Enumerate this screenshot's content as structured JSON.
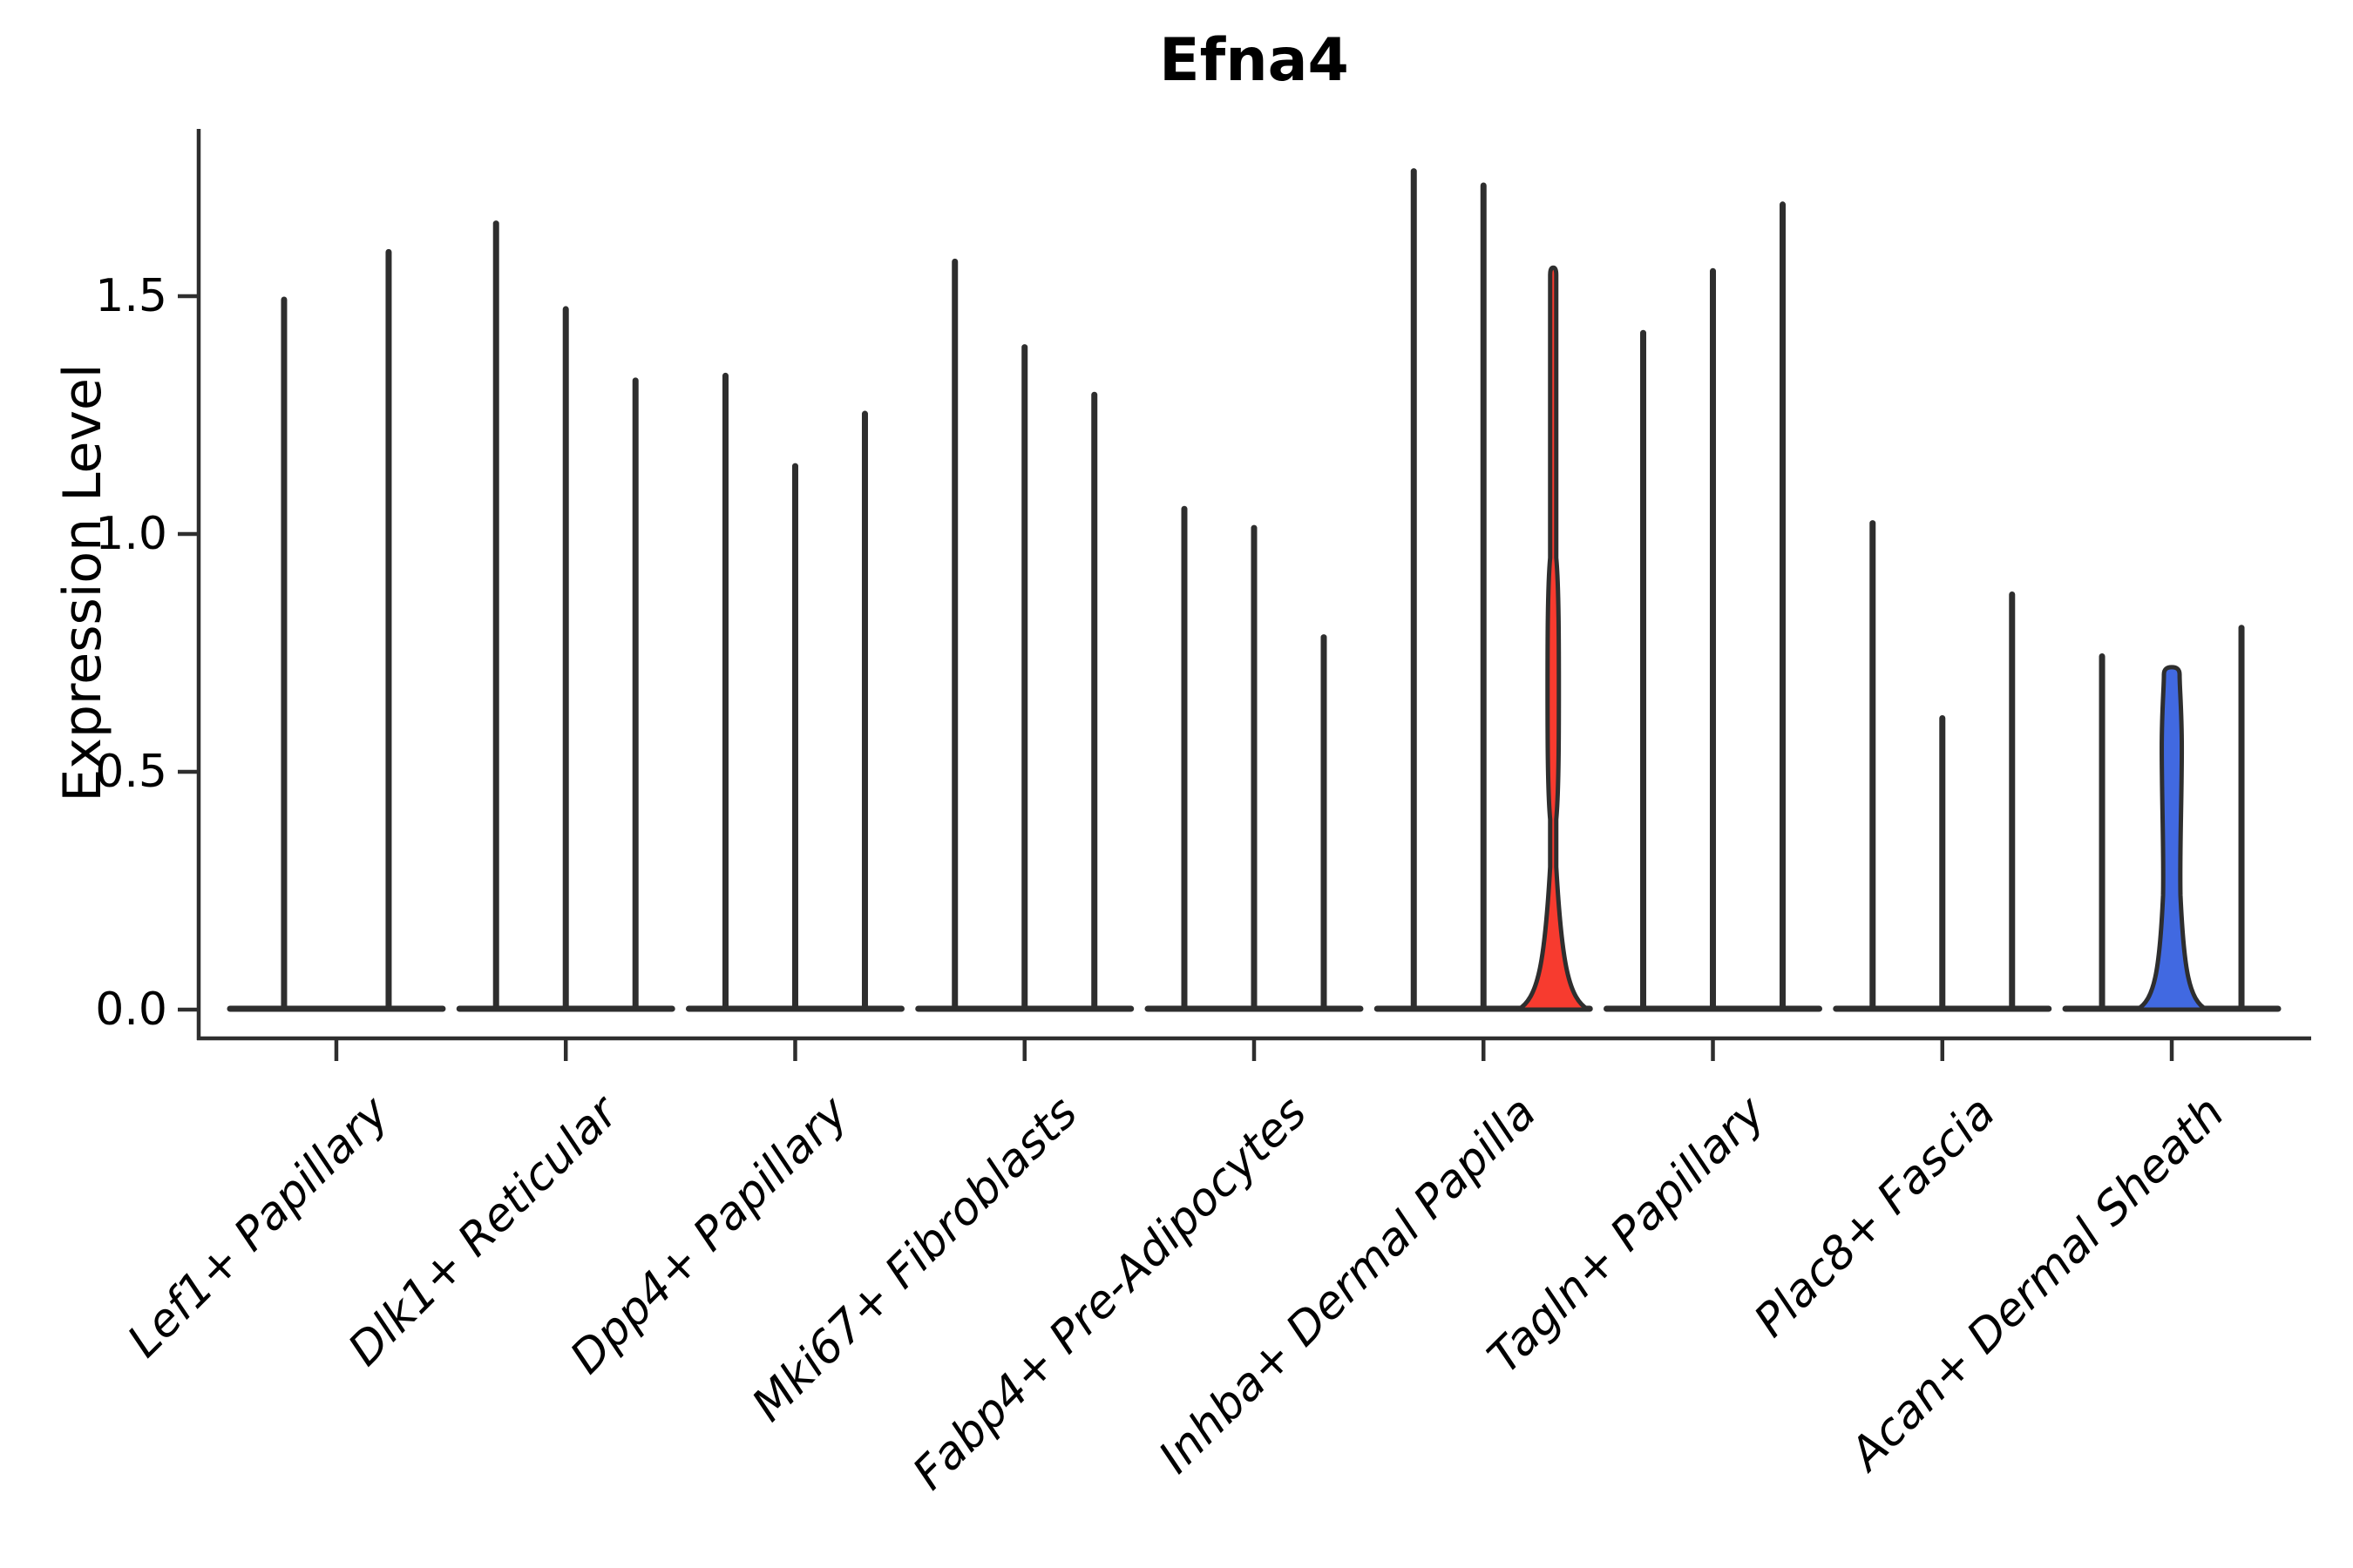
{
  "chart_data": {
    "type": "violin",
    "title": "Efna4",
    "ylabel": "Expression Level",
    "xlabel": "",
    "yticks": [
      "0.0",
      "0.5",
      "1.0",
      "1.5"
    ],
    "ytick_values": [
      0.0,
      0.5,
      1.0,
      1.5
    ],
    "ylim": [
      -0.06,
      1.85
    ],
    "grid": false,
    "legend": "none",
    "categories": [
      "Lef1+ Papillary",
      "Dlk1+ Reticular",
      "Dpp4+ Papillary",
      "Mki67+ Fibroblasts",
      "Fabp4+ Pre-Adipocytes",
      "Inhba+ Dermal Papilla",
      "Tagln+ Papillary",
      "Plac8+ Fascia",
      "Acan+ Dermal Sheath"
    ],
    "groups": [
      {
        "category": "Lef1+ Papillary",
        "violins": [
          {
            "peak": 1.5,
            "shape": "spike"
          },
          {
            "peak": 1.6,
            "shape": "spike"
          }
        ]
      },
      {
        "category": "Dlk1+ Reticular",
        "violins": [
          {
            "peak": 1.66,
            "shape": "spike"
          },
          {
            "peak": 1.48,
            "shape": "spike"
          },
          {
            "peak": 1.33,
            "shape": "spike"
          }
        ]
      },
      {
        "category": "Dpp4+ Papillary",
        "violins": [
          {
            "peak": 1.34,
            "shape": "spike"
          },
          {
            "peak": 1.15,
            "shape": "spike"
          },
          {
            "peak": 1.26,
            "shape": "spike"
          }
        ]
      },
      {
        "category": "Mki67+ Fibroblasts",
        "violins": [
          {
            "peak": 1.58,
            "shape": "spike"
          },
          {
            "peak": 1.4,
            "shape": "spike"
          },
          {
            "peak": 1.3,
            "shape": "spike"
          }
        ]
      },
      {
        "category": "Fabp4+ Pre-Adipocytes",
        "violins": [
          {
            "peak": 1.06,
            "shape": "spike"
          },
          {
            "peak": 1.02,
            "shape": "spike"
          },
          {
            "peak": 0.79,
            "shape": "spike"
          }
        ]
      },
      {
        "category": "Inhba+ Dermal Papilla",
        "violins": [
          {
            "peak": 1.77,
            "shape": "spike"
          },
          {
            "peak": 1.74,
            "shape": "spike"
          },
          {
            "peak": 1.56,
            "shape": "violin_bulge",
            "fill_color": "#f73b2f",
            "bulge_top": 0.95,
            "bulge_bottom": 0.4,
            "bulge_halfwidth": 6.5,
            "bell_start": 0.3
          }
        ]
      },
      {
        "category": "Tagln+ Papillary",
        "violins": [
          {
            "peak": 1.43,
            "shape": "spike"
          },
          {
            "peak": 1.56,
            "shape": "spike"
          },
          {
            "peak": 1.7,
            "shape": "spike"
          }
        ]
      },
      {
        "category": "Plac8+ Fascia",
        "violins": [
          {
            "peak": 1.03,
            "shape": "spike"
          },
          {
            "peak": 0.62,
            "shape": "spike"
          },
          {
            "peak": 0.88,
            "shape": "spike"
          }
        ]
      },
      {
        "category": "Acan+ Dermal Sheath",
        "violins": [
          {
            "peak": 0.75,
            "shape": "spike"
          },
          {
            "peak": 0.72,
            "shape": "violin_column",
            "fill_color": "#4169e1",
            "column_halfwidth": 11.5,
            "bell_start": 0.24
          },
          {
            "peak": 0.81,
            "shape": "spike"
          }
        ]
      }
    ],
    "colors": {
      "outline": "#2e2e2e",
      "red_fill": "#f73b2f",
      "blue_fill": "#4169e1",
      "text": "#000000",
      "background": "#ffffff"
    }
  }
}
